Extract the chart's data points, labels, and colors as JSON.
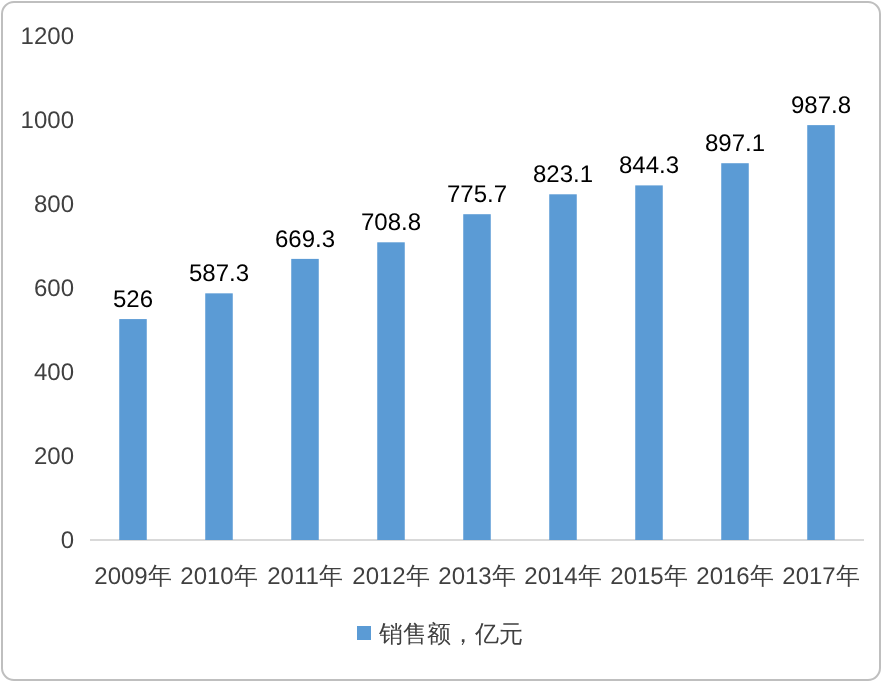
{
  "chart_data": {
    "type": "bar",
    "categories": [
      "2009年",
      "2010年",
      "2011年",
      "2012年",
      "2013年",
      "2014年",
      "2015年",
      "2016年",
      "2017年"
    ],
    "series": [
      {
        "name": "销售额，亿元",
        "color": "#5b9bd5",
        "values": [
          526,
          587.3,
          669.3,
          708.8,
          775.7,
          823.1,
          844.3,
          897.1,
          987.8
        ]
      }
    ],
    "ylim": [
      0,
      1200
    ],
    "yticks": [
      0,
      200,
      400,
      600,
      800,
      1000,
      1200
    ],
    "data_labels": true,
    "legend": "bottom"
  }
}
